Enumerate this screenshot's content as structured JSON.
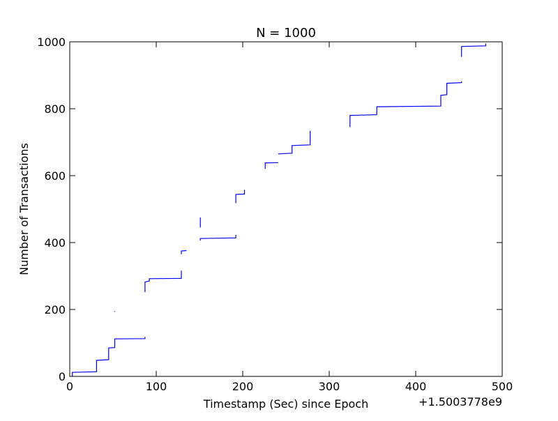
{
  "chart_data": {
    "type": "line",
    "title": "N = 1000",
    "xlabel": "Timestamp (Sec) since Epoch",
    "ylabel": "Number of Transactions",
    "x_offset_text": "+1.5003778e9",
    "xlim": [
      0,
      500
    ],
    "ylim": [
      0,
      1000
    ],
    "xticks": [
      0,
      100,
      200,
      300,
      400,
      500
    ],
    "xtick_labels": [
      "0",
      "100",
      "200",
      "300",
      "400",
      "500"
    ],
    "yticks": [
      0,
      200,
      400,
      600,
      800,
      1000
    ],
    "ytick_labels": [
      "0",
      "200",
      "400",
      "600",
      "800",
      "1000"
    ],
    "grid": false,
    "line_color": "#0000ff",
    "segments": [
      [
        [
          3,
          0
        ],
        [
          3,
          12
        ],
        [
          31,
          14
        ],
        [
          31,
          48
        ],
        [
          45,
          50
        ],
        [
          45,
          85
        ],
        [
          52,
          86
        ],
        [
          52,
          112
        ],
        [
          87,
          113
        ],
        [
          87,
          118
        ]
      ],
      [
        [
          52,
          193
        ],
        [
          52,
          195
        ]
      ],
      [
        [
          87,
          252
        ],
        [
          87,
          282
        ],
        [
          92,
          285
        ],
        [
          92,
          292
        ],
        [
          129,
          293
        ],
        [
          129,
          316
        ]
      ],
      [
        [
          129,
          365
        ],
        [
          129,
          375
        ],
        [
          135,
          376
        ]
      ],
      [
        [
          151,
          445
        ],
        [
          151,
          475
        ]
      ],
      [
        [
          151,
          406
        ],
        [
          151,
          412
        ],
        [
          192,
          414
        ],
        [
          192,
          423
        ]
      ],
      [
        [
          192,
          518
        ],
        [
          192,
          544
        ],
        [
          202,
          545
        ],
        [
          202,
          558
        ]
      ],
      [
        [
          226,
          620
        ],
        [
          226,
          638
        ],
        [
          241,
          639
        ]
      ],
      [
        [
          241,
          665
        ],
        [
          257,
          667
        ],
        [
          257,
          690
        ],
        [
          278,
          692
        ],
        [
          278,
          734
        ]
      ],
      [
        [
          324,
          745
        ],
        [
          324,
          780
        ],
        [
          355,
          782
        ],
        [
          355,
          806
        ],
        [
          429,
          808
        ],
        [
          429,
          840
        ],
        [
          436,
          842
        ],
        [
          436,
          876
        ],
        [
          453,
          878
        ],
        [
          453,
          882
        ]
      ],
      [
        [
          453,
          955
        ],
        [
          453,
          986
        ],
        [
          481,
          988
        ],
        [
          481,
          995
        ]
      ]
    ]
  }
}
